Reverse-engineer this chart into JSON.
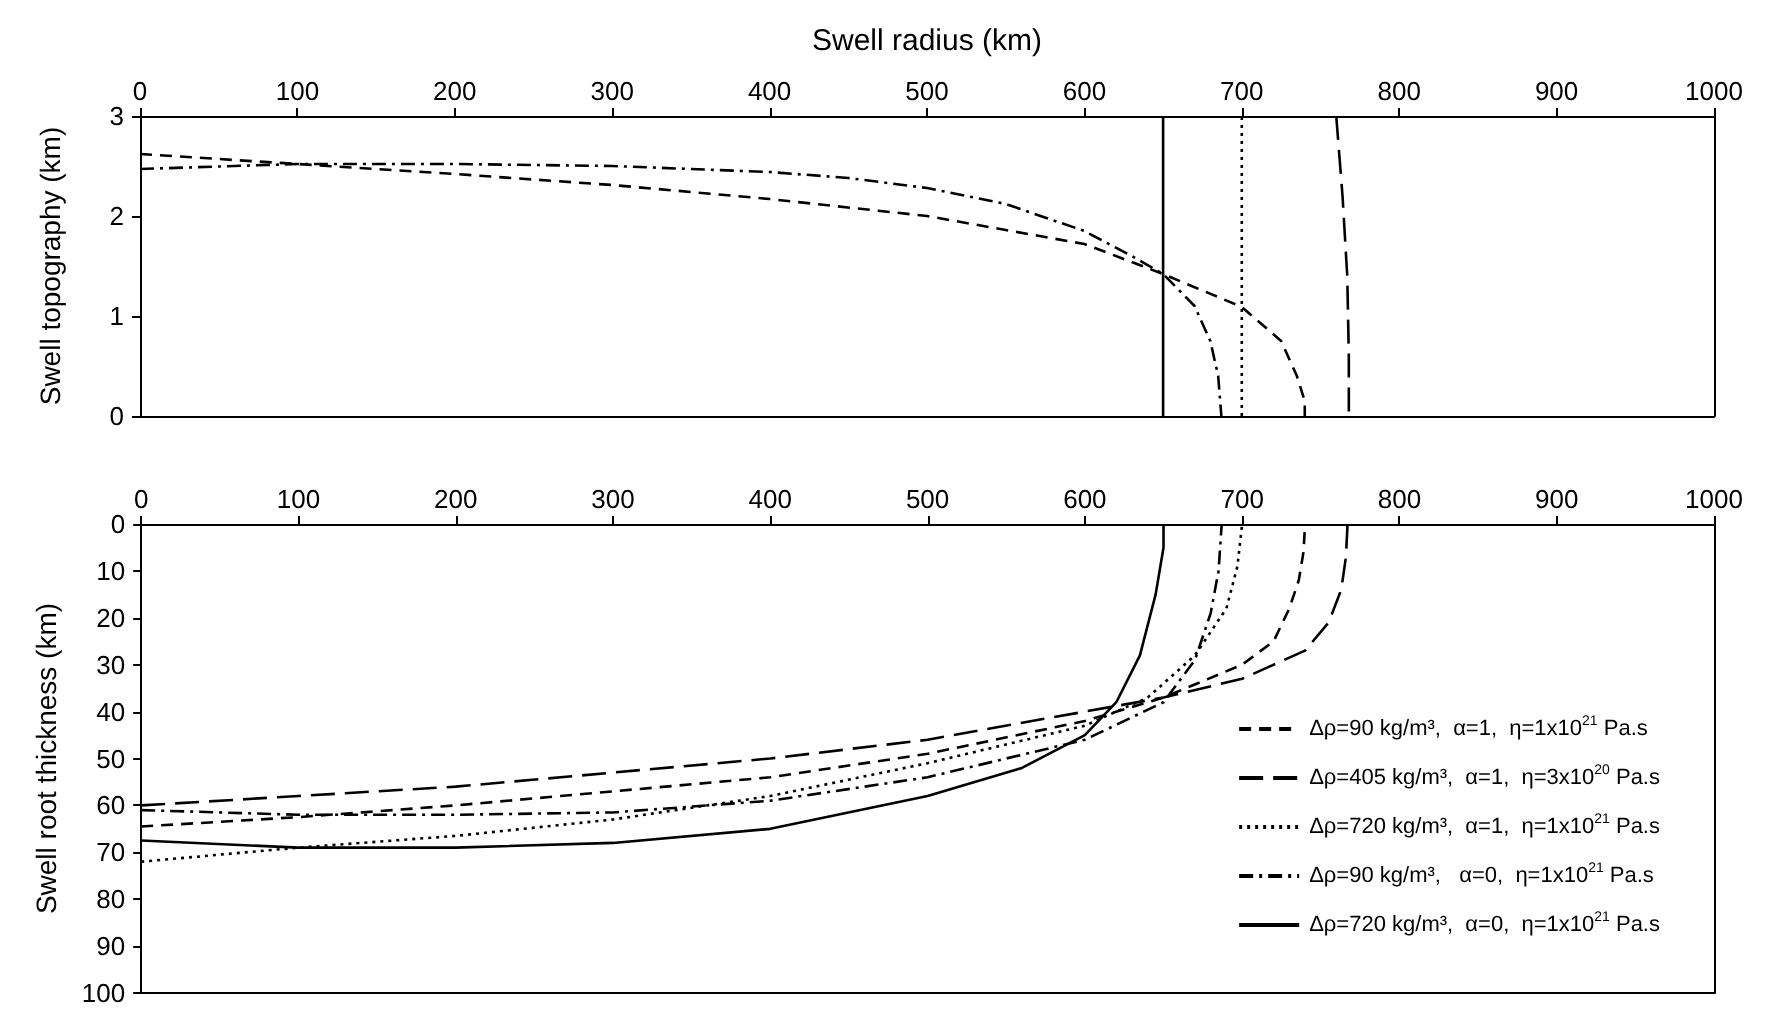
{
  "chart_data": [
    {
      "type": "line",
      "xlabel": "Swell radius (km)",
      "ylabel": "Swell topography (km)",
      "xlim": [
        0,
        1000
      ],
      "xticks": [
        0,
        100,
        200,
        300,
        400,
        500,
        600,
        700,
        800,
        900,
        1000
      ],
      "ylim": [
        0,
        3
      ],
      "yticks": [
        0,
        1,
        2,
        3
      ],
      "grid": false,
      "legend": false,
      "marker": "none",
      "series": [
        {
          "color": "#000000",
          "line_style": "dashed",
          "x": [
            0,
            100,
            200,
            300,
            400,
            500,
            600,
            650,
            700,
            725,
            735,
            740,
            740
          ],
          "values": [
            2.62,
            2.52,
            2.42,
            2.31,
            2.17,
            2.0,
            1.72,
            1.42,
            1.09,
            0.75,
            0.4,
            0.15,
            0
          ]
        },
        {
          "color": "#000000",
          "line_style": "longdashed",
          "x": [
            760,
            764,
            767,
            768,
            768
          ],
          "values": [
            3,
            2.2,
            1.4,
            0.6,
            0
          ]
        },
        {
          "color": "#000000",
          "line_style": "dotted",
          "x": [
            700,
            700,
            700,
            700
          ],
          "values": [
            0,
            1,
            2,
            3
          ]
        },
        {
          "color": "#000000",
          "line_style": "dashdot",
          "x": [
            0,
            100,
            200,
            300,
            400,
            450,
            500,
            550,
            600,
            630,
            650,
            670,
            680,
            685,
            687
          ],
          "values": [
            2.47,
            2.52,
            2.52,
            2.5,
            2.44,
            2.38,
            2.28,
            2.12,
            1.85,
            1.6,
            1.42,
            1.1,
            0.75,
            0.4,
            0
          ]
        },
        {
          "color": "#000000",
          "line_style": "solid",
          "x": [
            650,
            650,
            650,
            650
          ],
          "values": [
            0,
            1,
            2,
            3
          ]
        }
      ]
    },
    {
      "type": "line",
      "ylabel": "Swell root thickness (km)",
      "xlim": [
        0,
        1000
      ],
      "xticks": [
        0,
        100,
        200,
        300,
        400,
        500,
        600,
        700,
        800,
        900,
        1000
      ],
      "ylim": [
        100,
        0
      ],
      "yticks": [
        0,
        10,
        20,
        30,
        40,
        50,
        60,
        70,
        80,
        90,
        100
      ],
      "grid": false,
      "legend": "bottom right",
      "marker": "none",
      "series": [
        {
          "name": "Δρ=90 kg/m³,  α=1,  η=1x10$^{21}$ Pa.s",
          "color": "#000000",
          "line_style": "dashed",
          "x": [
            0,
            100,
            200,
            300,
            400,
            500,
            600,
            650,
            700,
            720,
            730,
            736,
            739,
            740
          ],
          "values": [
            64.5,
            62.5,
            60,
            57,
            54,
            49,
            42,
            37,
            30,
            25,
            18,
            12,
            6,
            0
          ]
        },
        {
          "name": "Δρ=405 kg/m³,  α=1,  η=3x10$^{20}$ Pa.s",
          "color": "#000000",
          "line_style": "longdashed",
          "x": [
            0,
            100,
            200,
            300,
            400,
            500,
            600,
            650,
            700,
            740,
            755,
            763,
            766,
            767
          ],
          "values": [
            60,
            58,
            56,
            53,
            50,
            46,
            40,
            37,
            33,
            27,
            21,
            14,
            7,
            0
          ]
        },
        {
          "name": "Δρ=720 kg/m³,  α=1,  η=1x10$^{21}$ Pa.s",
          "color": "#000000",
          "line_style": "dotted",
          "x": [
            0,
            100,
            200,
            300,
            400,
            500,
            600,
            640,
            670,
            690,
            697,
            700
          ],
          "values": [
            72,
            69,
            66.5,
            63,
            58,
            51,
            43,
            37,
            28,
            18,
            9,
            0
          ]
        },
        {
          "name": "Δρ=90 kg/m³,   α=0,  η=1x10$^{21}$ Pa.s",
          "color": "#000000",
          "line_style": "dashdot",
          "x": [
            0,
            100,
            200,
            300,
            400,
            500,
            600,
            650,
            670,
            680,
            685,
            687
          ],
          "values": [
            61,
            62,
            62,
            61.5,
            59,
            54,
            46,
            38,
            29,
            19,
            10,
            0
          ]
        },
        {
          "name": "Δρ=720 kg/m³,  α=0,  η=1x10$^{21}$ Pa.s",
          "color": "#000000",
          "line_style": "solid",
          "x": [
            0,
            100,
            200,
            300,
            400,
            500,
            560,
            600,
            620,
            635,
            645,
            650,
            650
          ],
          "values": [
            67.5,
            69,
            69,
            68,
            65,
            58,
            52,
            45,
            38,
            28,
            15,
            5,
            0
          ]
        }
      ]
    }
  ]
}
